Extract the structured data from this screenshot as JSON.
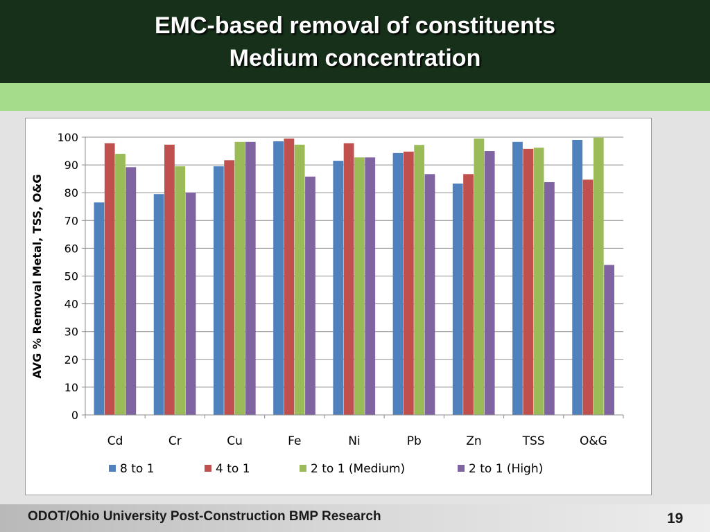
{
  "slide": {
    "title_line1": "EMC-based removal of constituents",
    "title_line2": "Medium concentration",
    "footer": "ODOT/Ohio University Post-Construction BMP Research",
    "page_number": "19",
    "colors": {
      "header": "#16301a",
      "band": "#a4dc8c"
    }
  },
  "chart_data": {
    "type": "bar",
    "title": "",
    "xlabel": "",
    "ylabel": "AVG % Removal Metal, TSS, O&G",
    "ylim": [
      0,
      100
    ],
    "yticks": [
      0,
      10,
      20,
      30,
      40,
      50,
      60,
      70,
      80,
      90,
      100
    ],
    "grid": true,
    "legend_position": "bottom",
    "categories": [
      "Cd",
      "Cr",
      "Cu",
      "Fe",
      "Ni",
      "Pb",
      "Zn",
      "TSS",
      "O&G"
    ],
    "series": [
      {
        "name": "8 to 1",
        "color": "#4f81bd",
        "values": [
          76.5,
          79.5,
          89.5,
          98.5,
          91.5,
          94.3,
          83.3,
          98.3,
          99.0
        ]
      },
      {
        "name": "4 to 1",
        "color": "#c0504d",
        "values": [
          97.8,
          97.3,
          91.7,
          99.5,
          97.8,
          94.8,
          86.7,
          95.8,
          84.7
        ]
      },
      {
        "name": "2 to 1 (Medium)",
        "color": "#9bbb59",
        "values": [
          94.0,
          89.5,
          98.3,
          97.3,
          92.7,
          97.2,
          99.5,
          96.2,
          99.8
        ]
      },
      {
        "name": "2 to 1 (High)",
        "color": "#8064a2",
        "values": [
          89.2,
          80.0,
          98.3,
          85.8,
          92.7,
          86.7,
          95.0,
          83.8,
          54.0
        ]
      }
    ]
  }
}
